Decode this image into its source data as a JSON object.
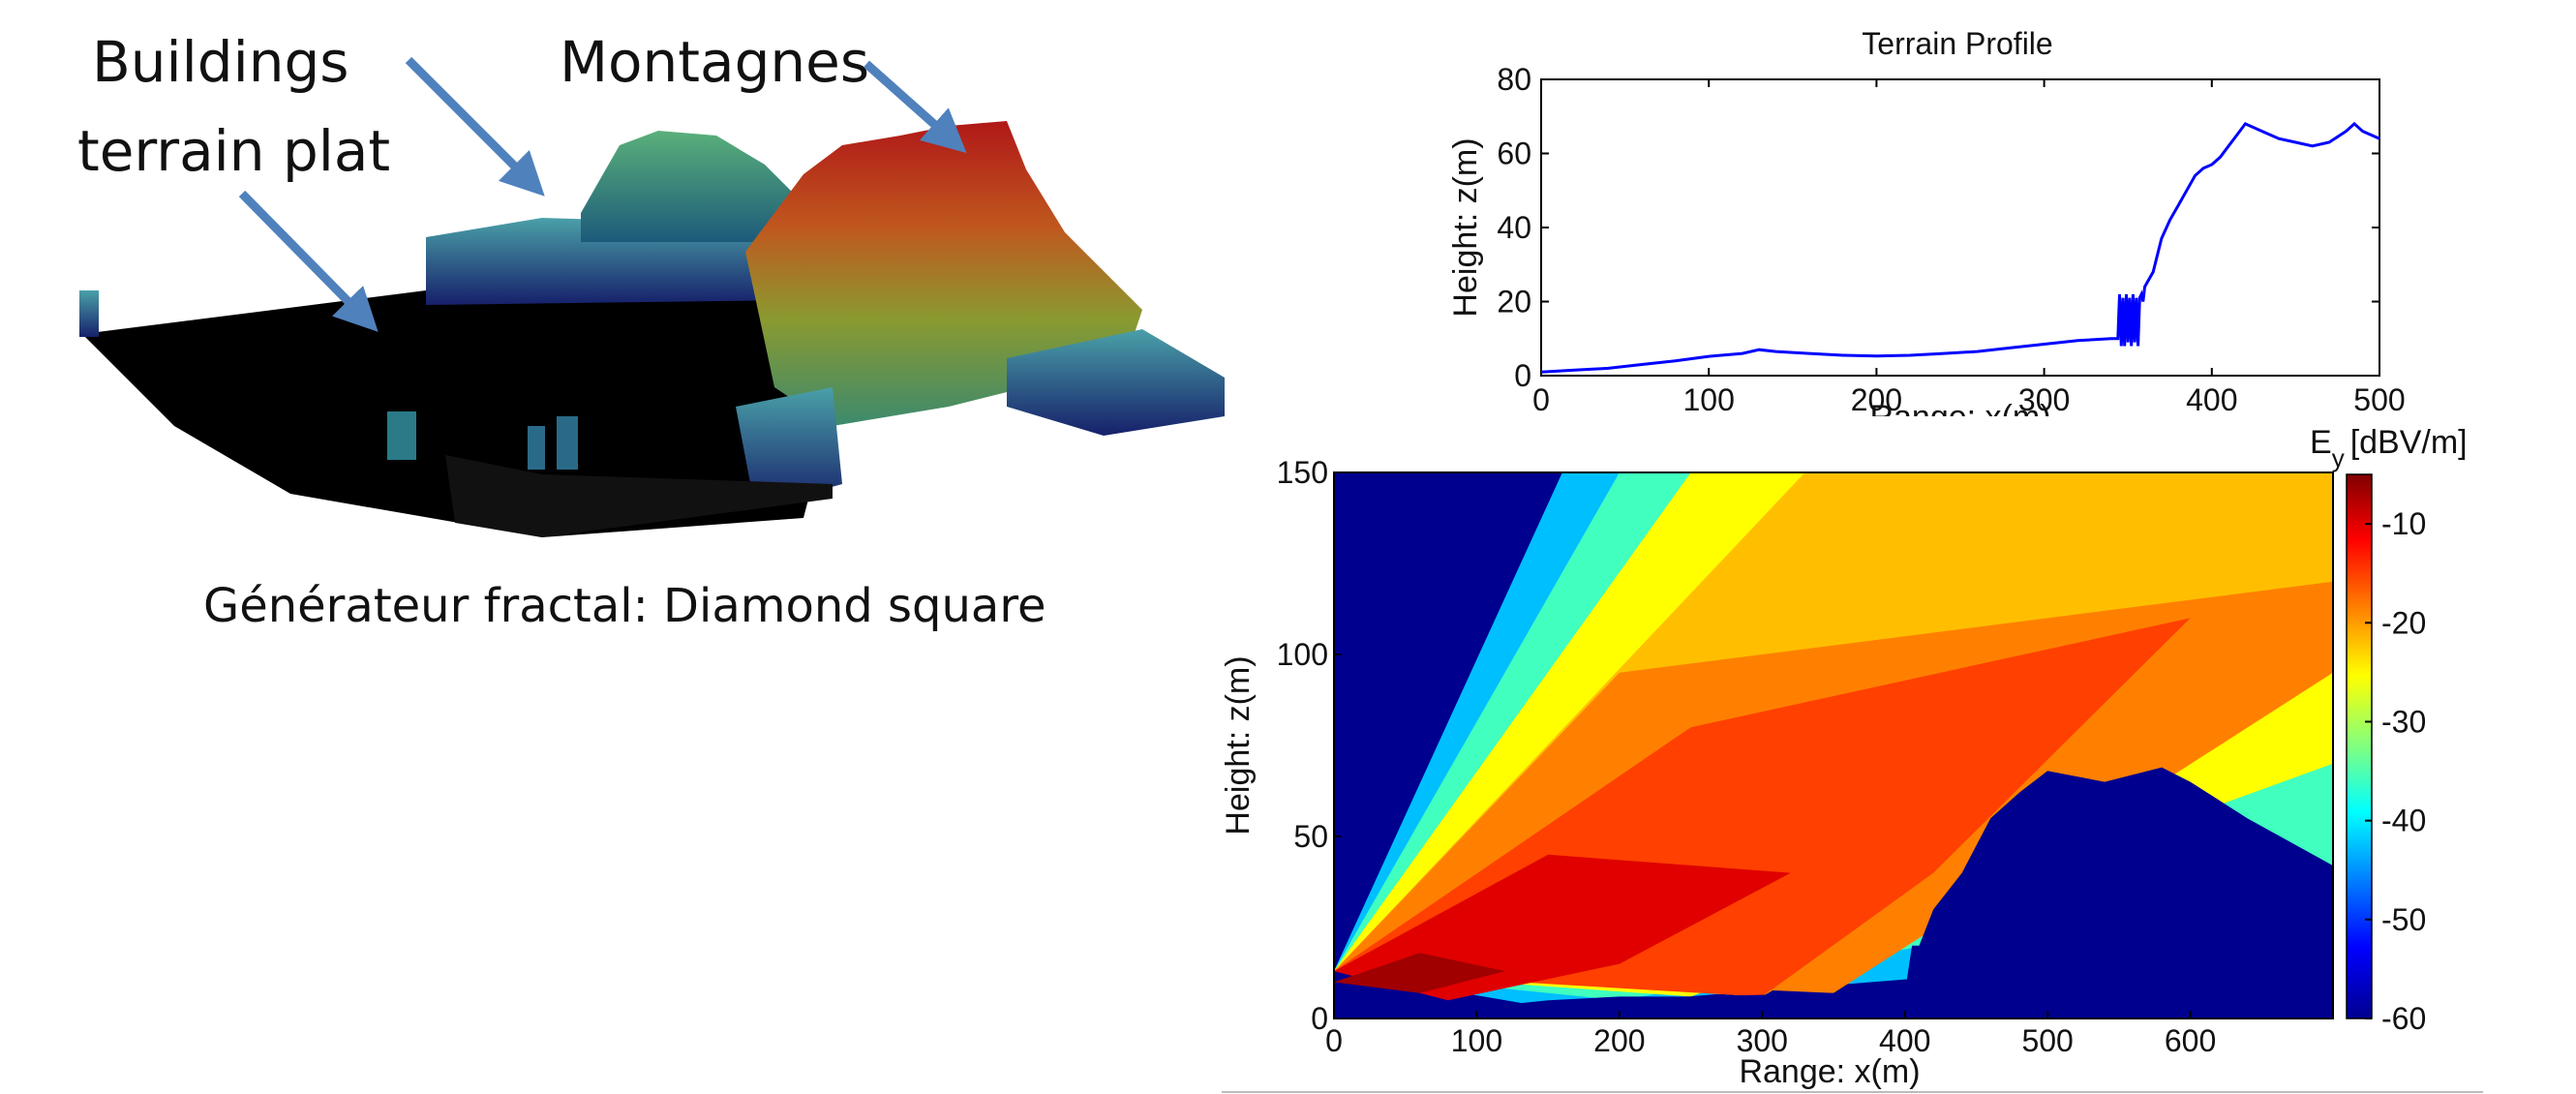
{
  "labels": {
    "buildings": "Buildings",
    "terrain_plat": "terrain plat",
    "montagnes": "Montagnes",
    "caption": "Générateur fractal: Diamond square"
  },
  "chart_data": [
    {
      "type": "line",
      "title": "Terrain Profile",
      "xlabel": "Range: x(m)",
      "ylabel": "Height: z(m)",
      "xlim": [
        0,
        500
      ],
      "ylim": [
        0,
        80
      ],
      "xticks": [
        0,
        100,
        200,
        300,
        400,
        500
      ],
      "yticks": [
        0,
        20,
        40,
        60,
        80
      ],
      "color": "#0000ff",
      "grid": false,
      "series": [
        {
          "x": [
            0,
            20,
            40,
            60,
            80,
            100,
            120,
            130,
            140,
            160,
            180,
            200,
            220,
            240,
            260,
            280,
            300,
            320,
            340,
            344,
            345,
            346,
            347,
            348,
            349,
            350,
            351,
            352,
            353,
            354,
            355,
            356,
            357,
            358,
            359,
            360,
            365,
            370,
            375,
            380,
            385,
            390,
            395,
            400,
            405,
            410,
            415,
            420,
            425,
            430,
            440,
            450,
            460,
            470,
            480,
            485,
            490,
            495,
            500
          ],
          "y": [
            1,
            1.5,
            2,
            3,
            4,
            5.2,
            6,
            7,
            6.5,
            6,
            5.5,
            5.3,
            5.5,
            6,
            6.5,
            7.5,
            8.5,
            9.5,
            10,
            10,
            22,
            8,
            21,
            8,
            22,
            9,
            21,
            8,
            22,
            9,
            21,
            8,
            21,
            22,
            20,
            24,
            28,
            37,
            42,
            46,
            50,
            54,
            56,
            57,
            59,
            62,
            65,
            68,
            67,
            66,
            64,
            63,
            62,
            63,
            66,
            68,
            66,
            65,
            64
          ]
        }
      ]
    },
    {
      "type": "heatmap",
      "xlabel": "Range: x(m)",
      "ylabel": "Height: z(m)",
      "xlim": [
        0,
        700
      ],
      "ylim": [
        0,
        150
      ],
      "xticks": [
        0,
        100,
        200,
        300,
        400,
        500,
        600
      ],
      "yticks": [
        0,
        50,
        100,
        150
      ],
      "colorbar_title": "E",
      "colorbar_subscript": "y",
      "colorbar_units": "[dBV/m]",
      "colorbar_range": [
        -60,
        -5
      ],
      "colorbar_ticks": [
        -10,
        -20,
        -30,
        -40,
        -50,
        -60
      ],
      "source_height_m": 13,
      "ground_profile": {
        "x": [
          0,
          50,
          100,
          150,
          200,
          250,
          300,
          350,
          400,
          405,
          410,
          420,
          440,
          460,
          480,
          500,
          540,
          560,
          580,
          600,
          640,
          700
        ],
        "z": [
          0,
          2,
          3,
          5,
          6,
          6,
          6.5,
          7,
          7,
          20,
          20,
          30,
          40,
          55,
          62,
          68,
          65,
          67,
          69,
          65,
          55,
          42
        ]
      }
    }
  ]
}
